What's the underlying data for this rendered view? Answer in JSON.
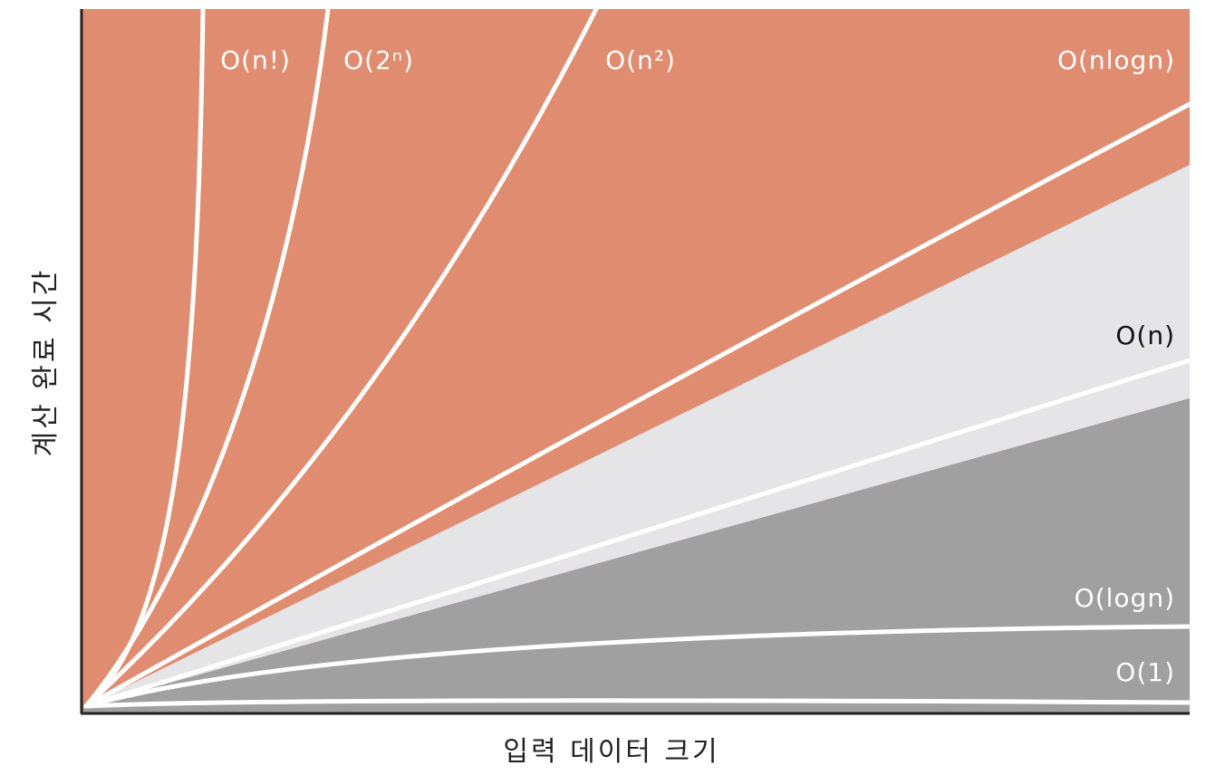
{
  "axes": {
    "y_label": "계산 완료 시간",
    "x_label": "입력 데이터 크기"
  },
  "curves": [
    {
      "label": "O(n!)"
    },
    {
      "label": "O(2ⁿ)"
    },
    {
      "label": "O(n²)"
    },
    {
      "label": "O(nlogn)"
    },
    {
      "label": "O(n)"
    },
    {
      "label": "O(logn)"
    },
    {
      "label": "O(1)"
    }
  ]
}
